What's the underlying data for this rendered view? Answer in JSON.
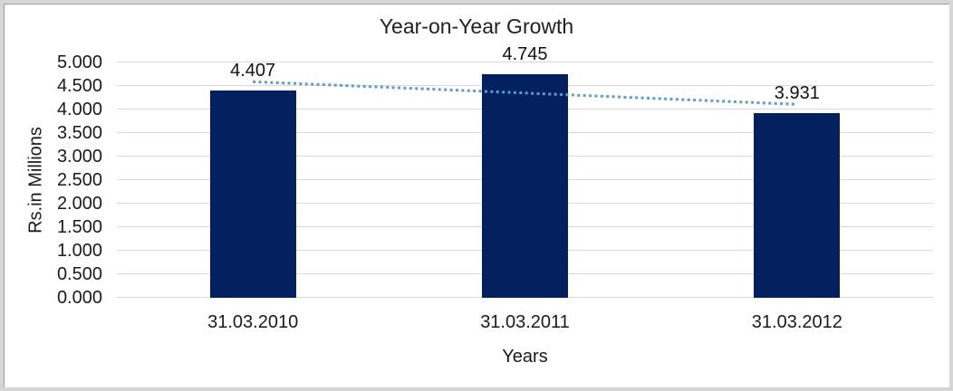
{
  "chart_data": {
    "type": "bar",
    "title": "Year-on-Year Growth",
    "xlabel": "Years",
    "ylabel": "Rs.in Millions",
    "categories": [
      "31.03.2010",
      "31.03.2011",
      "31.03.2012"
    ],
    "series": [
      {
        "name": "Rs.in Millions",
        "values": [
          4.407,
          4.745,
          3.931
        ],
        "data_labels": [
          "4.407",
          "4.745",
          "3.931"
        ]
      }
    ],
    "ylim": [
      0,
      5
    ],
    "ytick_values": [
      0,
      0.5,
      1,
      1.5,
      2,
      2.5,
      3,
      3.5,
      4,
      4.5,
      5
    ],
    "ytick_labels": [
      "0.000",
      "0.500",
      "1.000",
      "1.500",
      "2.000",
      "2.500",
      "3.000",
      "3.500",
      "4.000",
      "4.500",
      "5.000"
    ],
    "grid": "horizontal",
    "legend": "none",
    "trendline": {
      "type": "linear",
      "style": "dotted",
      "start_value": 4.59,
      "end_value": 4.11
    },
    "colors": {
      "bar": "#03215e",
      "trendline": "#5b9bd5",
      "gridline": "#d9d9d9",
      "text": "#1a1a1a"
    }
  }
}
